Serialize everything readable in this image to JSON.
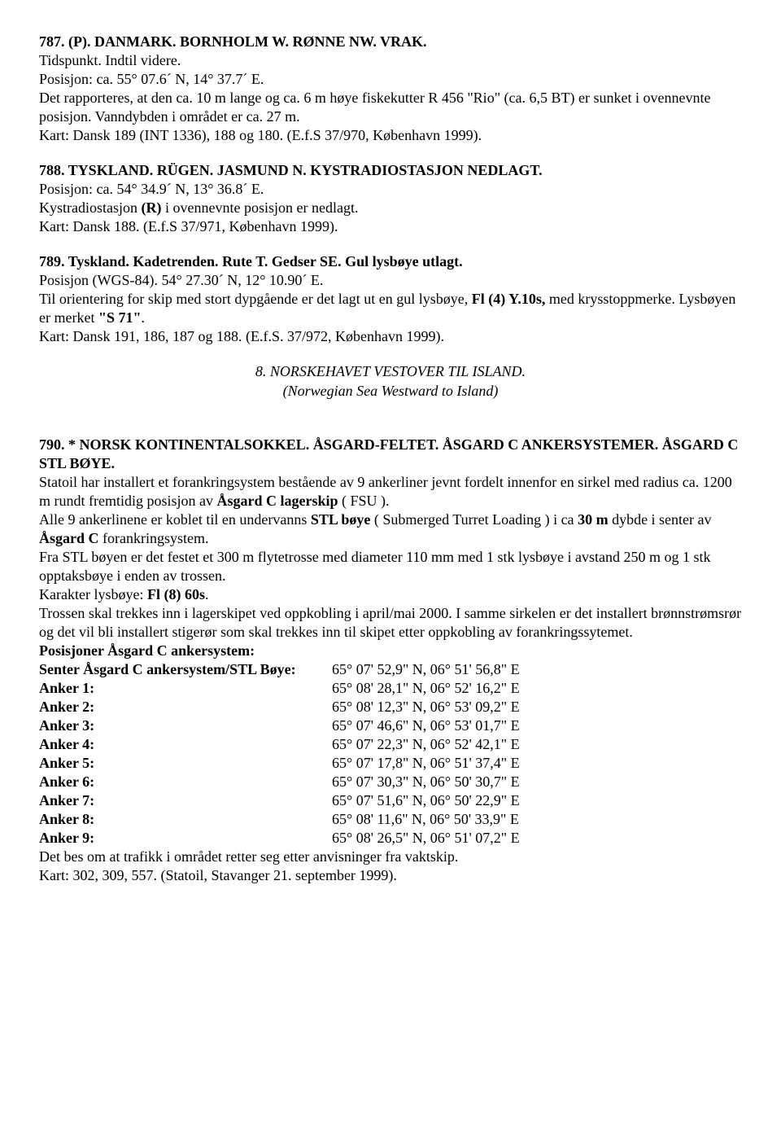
{
  "notice787": {
    "header": "787. (P). DANMARK. BORNHOLM W. RØNNE NW. VRAK.",
    "line1": "Tidspunkt. Indtil videre.",
    "line2": "Posisjon: ca. 55° 07.6´ N, 14° 37.7´ E.",
    "line3": "Det rapporteres, at den ca. 10 m lange og ca. 6 m høye fiskekutter R 456 \"Rio\" (ca. 6,5 BT) er sunket i ovennevnte posisjon. Vanndybden i området er ca. 27 m.",
    "line4": "Kart: Dansk 189 (INT 1336), 188 og 180. (E.f.S 37/970, København 1999)."
  },
  "notice788": {
    "header": "788. TYSKLAND. RÜGEN. JASMUND N. KYSTRADIOSTASJON NEDLAGT.",
    "line1": "Posisjon: ca. 54° 34.9´ N, 13° 36.8´ E.",
    "line2a": "Kystradiostasjon ",
    "line2b": "(R)",
    "line2c": " i ovennevnte posisjon er nedlagt.",
    "line3": "Kart: Dansk 188. (E.f.S 37/971, København 1999)."
  },
  "notice789": {
    "header": "789. Tyskland. Kadetrenden. Rute T. Gedser SE. Gul lysbøye utlagt.",
    "line1": "Posisjon (WGS-84). 54° 27.30´ N, 12° 10.90´ E.",
    "line2a": "Til orientering for skip med stort dypgående er det lagt ut en gul lysbøye, ",
    "line2b": "Fl (4) Y.10s,",
    "line2c": " med krysstoppmerke. Lysbøyen er merket ",
    "line2d": "\"S 71\"",
    "line2e": ".",
    "line3": "Kart: Dansk 191, 186, 187 og 188. (E.f.S. 37/972, København 1999)."
  },
  "section8": {
    "title": "8. NORSKEHAVET VESTOVER TIL ISLAND.",
    "subtitle": "(Norwegian Sea Westward to Island)"
  },
  "notice790": {
    "header": "790. * NORSK KONTINENTALSOKKEL. ÅSGARD-FELTET. ÅSGARD C ANKERSYSTEMER. ÅSGARD C STL BØYE.",
    "p1a": "Statoil har installert et forankringsystem bestående av 9 ankerliner jevnt fordelt innenfor en sirkel med radius ca. 1200 m rundt  fremtidig posisjon av ",
    "p1b": "Åsgard C lagerskip",
    "p1c": " ( FSU ).",
    "p2a": "Alle 9 ankerlinene er koblet til en undervanns ",
    "p2b": "STL bøye",
    "p2c": " ( Submerged Turret Loading ) i ca ",
    "p2d": "30 m",
    "p2e": " dybde i senter av ",
    "p2f": "Åsgard C",
    "p2g": " forankringsystem.",
    "p3": "Fra STL bøyen er det festet et 300 m flytetrosse med diameter 110 mm med 1 stk lysbøye i avstand 250 m og 1 stk opptaksbøye i enden av trossen.",
    "p4a": "Karakter lysbøye: ",
    "p4b": "Fl (8) 60s",
    "p4c": ".",
    "p5": "Trossen skal trekkes inn i lagerskipet ved oppkobling i april/mai 2000. I samme sirkelen er det installert brønnstrømsrør og det vil bli installert stigerør som skal trekkes inn til skipet etter oppkobling av forankringssytemet.",
    "positions_header": "Posisjoner Åsgard C ankersystem:",
    "anchors": [
      {
        "label": "Senter Åsgard C ankersystem/STL Bøye:",
        "coord": "65° 07' 52,9\" N, 06° 51' 56,8\" E"
      },
      {
        "label": "Anker 1:",
        "coord": "65° 08' 28,1\" N, 06° 52' 16,2\" E"
      },
      {
        "label": "Anker 2:",
        "coord": "65° 08' 12,3\" N, 06° 53' 09,2\" E"
      },
      {
        "label": "Anker 3:",
        "coord": "65° 07' 46,6\" N, 06° 53' 01,7\" E"
      },
      {
        "label": "Anker 4:",
        "coord": "65° 07' 22,3\" N, 06° 52' 42,1\" E"
      },
      {
        "label": "Anker 5:",
        "coord": "65° 07' 17,8\" N, 06° 51' 37,4\" E"
      },
      {
        "label": "Anker 6:",
        "coord": "65° 07' 30,3\" N, 06° 50' 30,7\" E"
      },
      {
        "label": "Anker 7:",
        "coord": "65° 07' 51,6\" N, 06° 50' 22,9\" E"
      },
      {
        "label": "Anker 8:",
        "coord": "65° 08' 11,6\" N, 06° 50' 33,9\" E"
      },
      {
        "label": "Anker 9:",
        "coord": "65° 08' 26,5\" N, 06° 51' 07,2\" E"
      }
    ],
    "p6": "Det bes om at trafikk i området retter seg etter anvisninger fra vaktskip.",
    "p7": "Kart: 302, 309, 557. (Statoil, Stavanger 21. september 1999)."
  }
}
